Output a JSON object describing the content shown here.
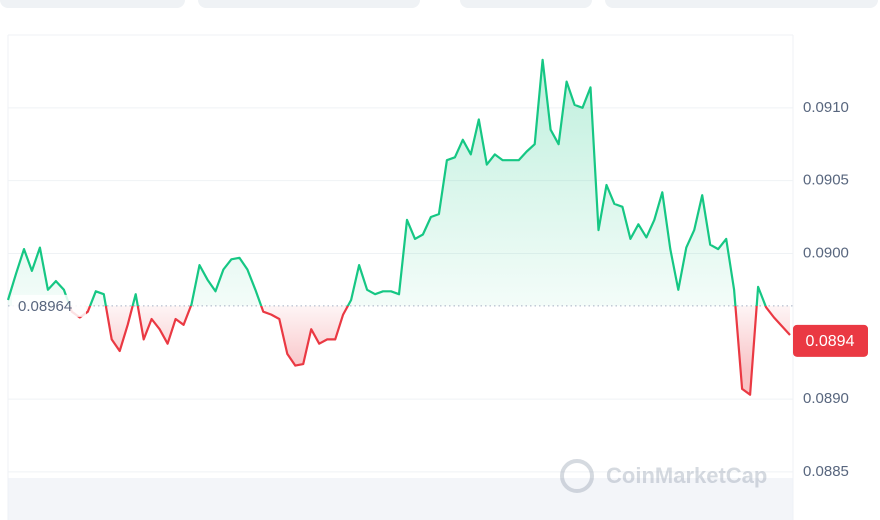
{
  "chart_data": {
    "type": "baseline-line",
    "values": [
      0.08968,
      0.08986,
      0.09003,
      0.08988,
      0.09004,
      0.08975,
      0.08981,
      0.08975,
      0.0896,
      0.08956,
      0.0896,
      0.08974,
      0.08972,
      0.08941,
      0.08933,
      0.08951,
      0.08972,
      0.08941,
      0.08955,
      0.08948,
      0.08938,
      0.08955,
      0.08951,
      0.08965,
      0.08992,
      0.08982,
      0.08974,
      0.08989,
      0.08996,
      0.08997,
      0.08989,
      0.08975,
      0.0896,
      0.08958,
      0.08955,
      0.08931,
      0.08923,
      0.08924,
      0.08948,
      0.08938,
      0.08941,
      0.08941,
      0.08958,
      0.08968,
      0.08992,
      0.08975,
      0.08972,
      0.08974,
      0.08974,
      0.08972,
      0.09023,
      0.0901,
      0.09013,
      0.09025,
      0.09027,
      0.09064,
      0.09066,
      0.09078,
      0.09068,
      0.09092,
      0.09061,
      0.09068,
      0.09064,
      0.09064,
      0.09064,
      0.0907,
      0.09075,
      0.09133,
      0.09085,
      0.09075,
      0.09118,
      0.09102,
      0.091,
      0.09114,
      0.09016,
      0.09047,
      0.09034,
      0.09032,
      0.0901,
      0.0902,
      0.09011,
      0.09023,
      0.09042,
      0.09003,
      0.08975,
      0.09004,
      0.09016,
      0.0904,
      0.09006,
      0.09003,
      0.0901,
      0.08975,
      0.08907,
      0.08903,
      0.08977,
      0.08963,
      0.08956,
      0.0895,
      0.08944
    ],
    "reference": 0.08964,
    "current_price": 0.0894,
    "up_color": "#16c784",
    "down_color": "#ea3943",
    "ylim": [
      0.0883,
      0.0915
    ],
    "yticks": [
      0.0885,
      {
        "value": 0.089,
        "label": "0.0890"
      },
      {
        "value": 0.09,
        "label": "0.0900"
      },
      0.0905,
      {
        "value": 0.091,
        "label": "0.0910"
      }
    ],
    "grid": true,
    "watermark": "CoinMarketCap"
  }
}
